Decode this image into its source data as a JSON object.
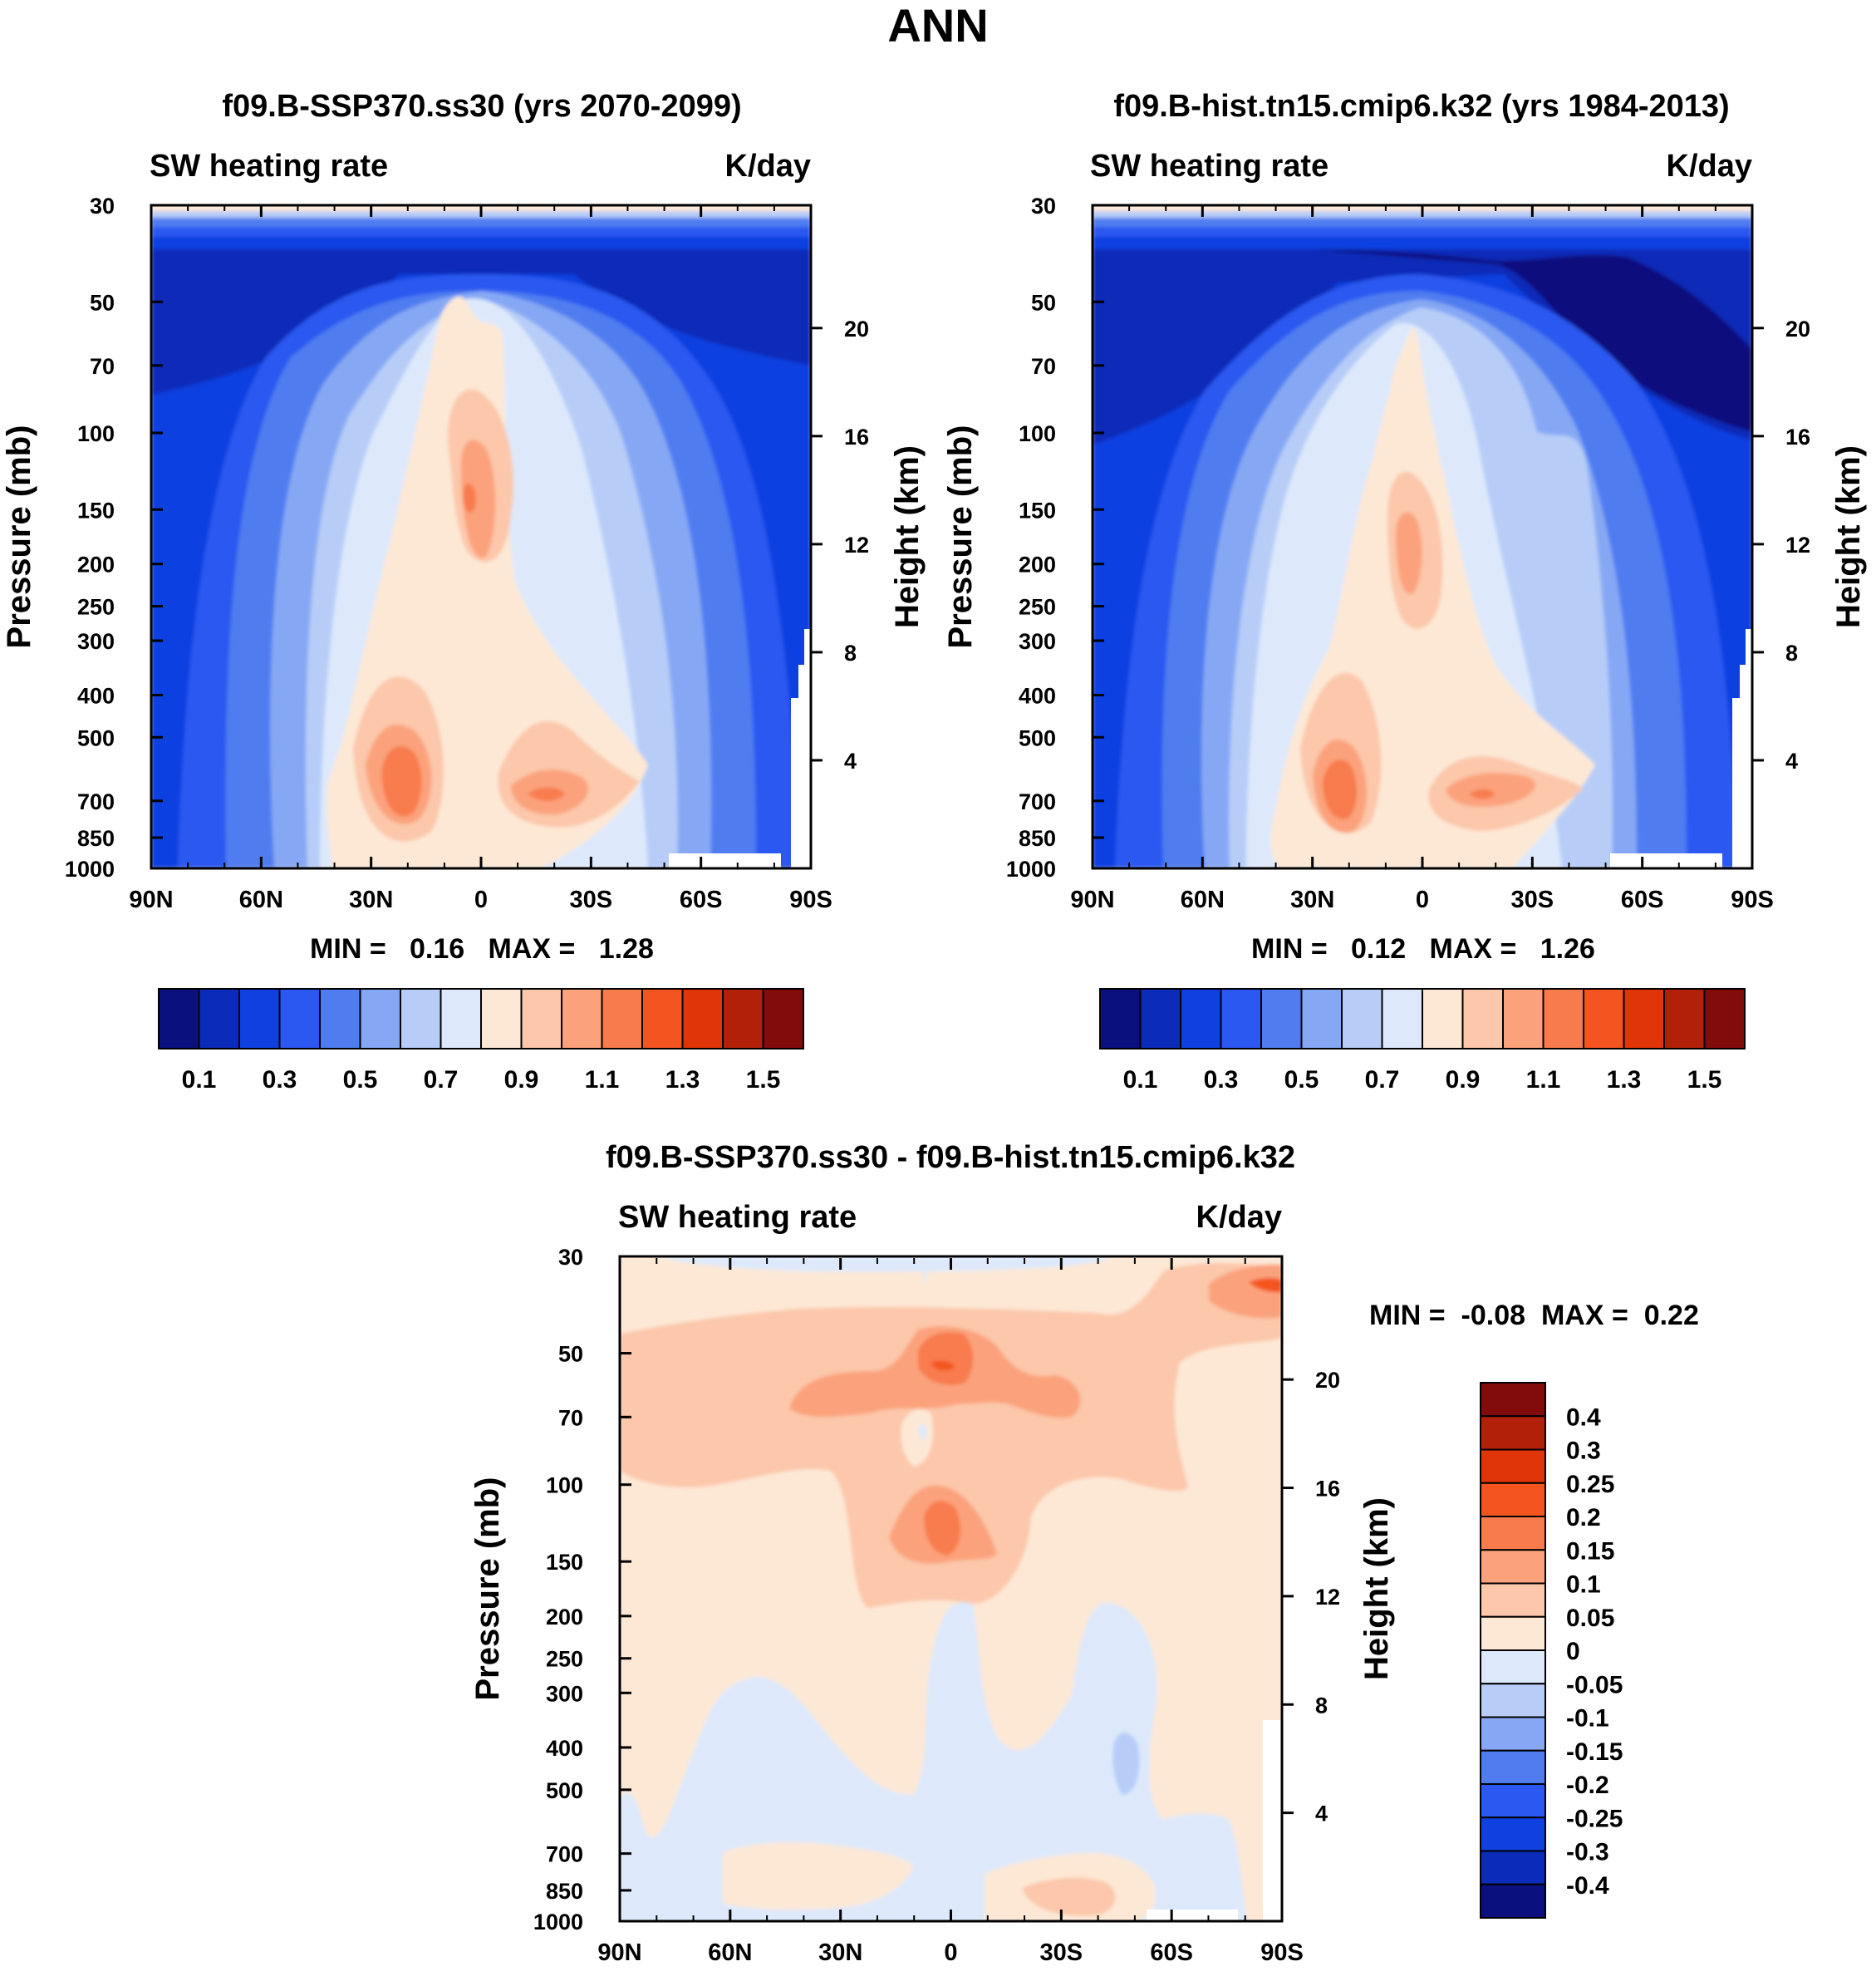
{
  "figure": {
    "title": "ANN"
  },
  "chart_data": [
    {
      "type": "contour",
      "title": "f09.B-SSP370.ss30 (yrs 2070-2099)",
      "left_string": "SW heating rate",
      "right_string": "K/day",
      "ylabel": "Pressure (mb)",
      "y2label": "Height (km)",
      "xticks": [
        "90N",
        "60N",
        "30N",
        "0",
        "30S",
        "60S",
        "90S"
      ],
      "pressure_ticks": [
        30,
        50,
        70,
        100,
        150,
        200,
        250,
        300,
        400,
        500,
        700,
        850,
        1000
      ],
      "height_ticks": [
        20,
        16,
        12,
        8,
        4
      ],
      "ylim": [
        30,
        1000
      ],
      "stats": {
        "min_label": "MIN =",
        "min": "0.16",
        "max_label": "MAX =",
        "max": "1.28"
      },
      "colorbar": {
        "levels": [
          "0.1",
          "0.3",
          "0.5",
          "0.7",
          "0.9",
          "1.1",
          "1.3",
          "1.5"
        ],
        "colors": [
          "#0a107e",
          "#0b2cb8",
          "#1040e0",
          "#2a58f0",
          "#4f7df0",
          "#86a8f4",
          "#b7cdf8",
          "#dde9fb",
          "#fde8d6",
          "#fcc7aa",
          "#fba27c",
          "#f87b4e",
          "#f4541f",
          "#e03509",
          "#b32009",
          "#820b0b"
        ]
      }
    },
    {
      "type": "contour",
      "title": "f09.B-hist.tn15.cmip6.k32 (yrs 1984-2013)",
      "left_string": "SW heating rate",
      "right_string": "K/day",
      "ylabel": "Pressure (mb)",
      "y2label": "Height (km)",
      "xticks": [
        "90N",
        "60N",
        "30N",
        "0",
        "30S",
        "60S",
        "90S"
      ],
      "pressure_ticks": [
        30,
        50,
        70,
        100,
        150,
        200,
        250,
        300,
        400,
        500,
        700,
        850,
        1000
      ],
      "height_ticks": [
        20,
        16,
        12,
        8,
        4
      ],
      "ylim": [
        30,
        1000
      ],
      "stats": {
        "min_label": "MIN =",
        "min": "0.12",
        "max_label": "MAX =",
        "max": "1.26"
      },
      "colorbar": {
        "levels": [
          "0.1",
          "0.3",
          "0.5",
          "0.7",
          "0.9",
          "1.1",
          "1.3",
          "1.5"
        ],
        "colors": [
          "#0a107e",
          "#0b2cb8",
          "#1040e0",
          "#2a58f0",
          "#4f7df0",
          "#86a8f4",
          "#b7cdf8",
          "#dde9fb",
          "#fde8d6",
          "#fcc7aa",
          "#fba27c",
          "#f87b4e",
          "#f4541f",
          "#e03509",
          "#b32009",
          "#820b0b"
        ]
      }
    },
    {
      "type": "contour",
      "title": "f09.B-SSP370.ss30 - f09.B-hist.tn15.cmip6.k32",
      "left_string": "SW heating rate",
      "right_string": "K/day",
      "ylabel": "Pressure (mb)",
      "y2label": "Height (km)",
      "xticks": [
        "90N",
        "60N",
        "30N",
        "0",
        "30S",
        "60S",
        "90S"
      ],
      "pressure_ticks": [
        30,
        50,
        70,
        100,
        150,
        200,
        250,
        300,
        400,
        500,
        700,
        850,
        1000
      ],
      "height_ticks": [
        20,
        16,
        12,
        8,
        4
      ],
      "ylim": [
        30,
        1000
      ],
      "stats": {
        "min_label": "MIN =",
        "min": "-0.08",
        "max_label": "MAX =",
        "max": "0.22"
      },
      "colorbar": {
        "levels": [
          "0.4",
          "0.3",
          "0.25",
          "0.2",
          "0.15",
          "0.1",
          "0.05",
          "0",
          "-0.05",
          "-0.1",
          "-0.15",
          "-0.2",
          "-0.25",
          "-0.3",
          "-0.4"
        ],
        "colors": [
          "#820b0b",
          "#b32009",
          "#e03509",
          "#f4541f",
          "#f87b4e",
          "#fba27c",
          "#fcc7aa",
          "#fde8d6",
          "#dde9fb",
          "#b7cdf8",
          "#86a8f4",
          "#4f7df0",
          "#2a58f0",
          "#1040e0",
          "#0b2cb8",
          "#0a107e"
        ]
      }
    }
  ]
}
